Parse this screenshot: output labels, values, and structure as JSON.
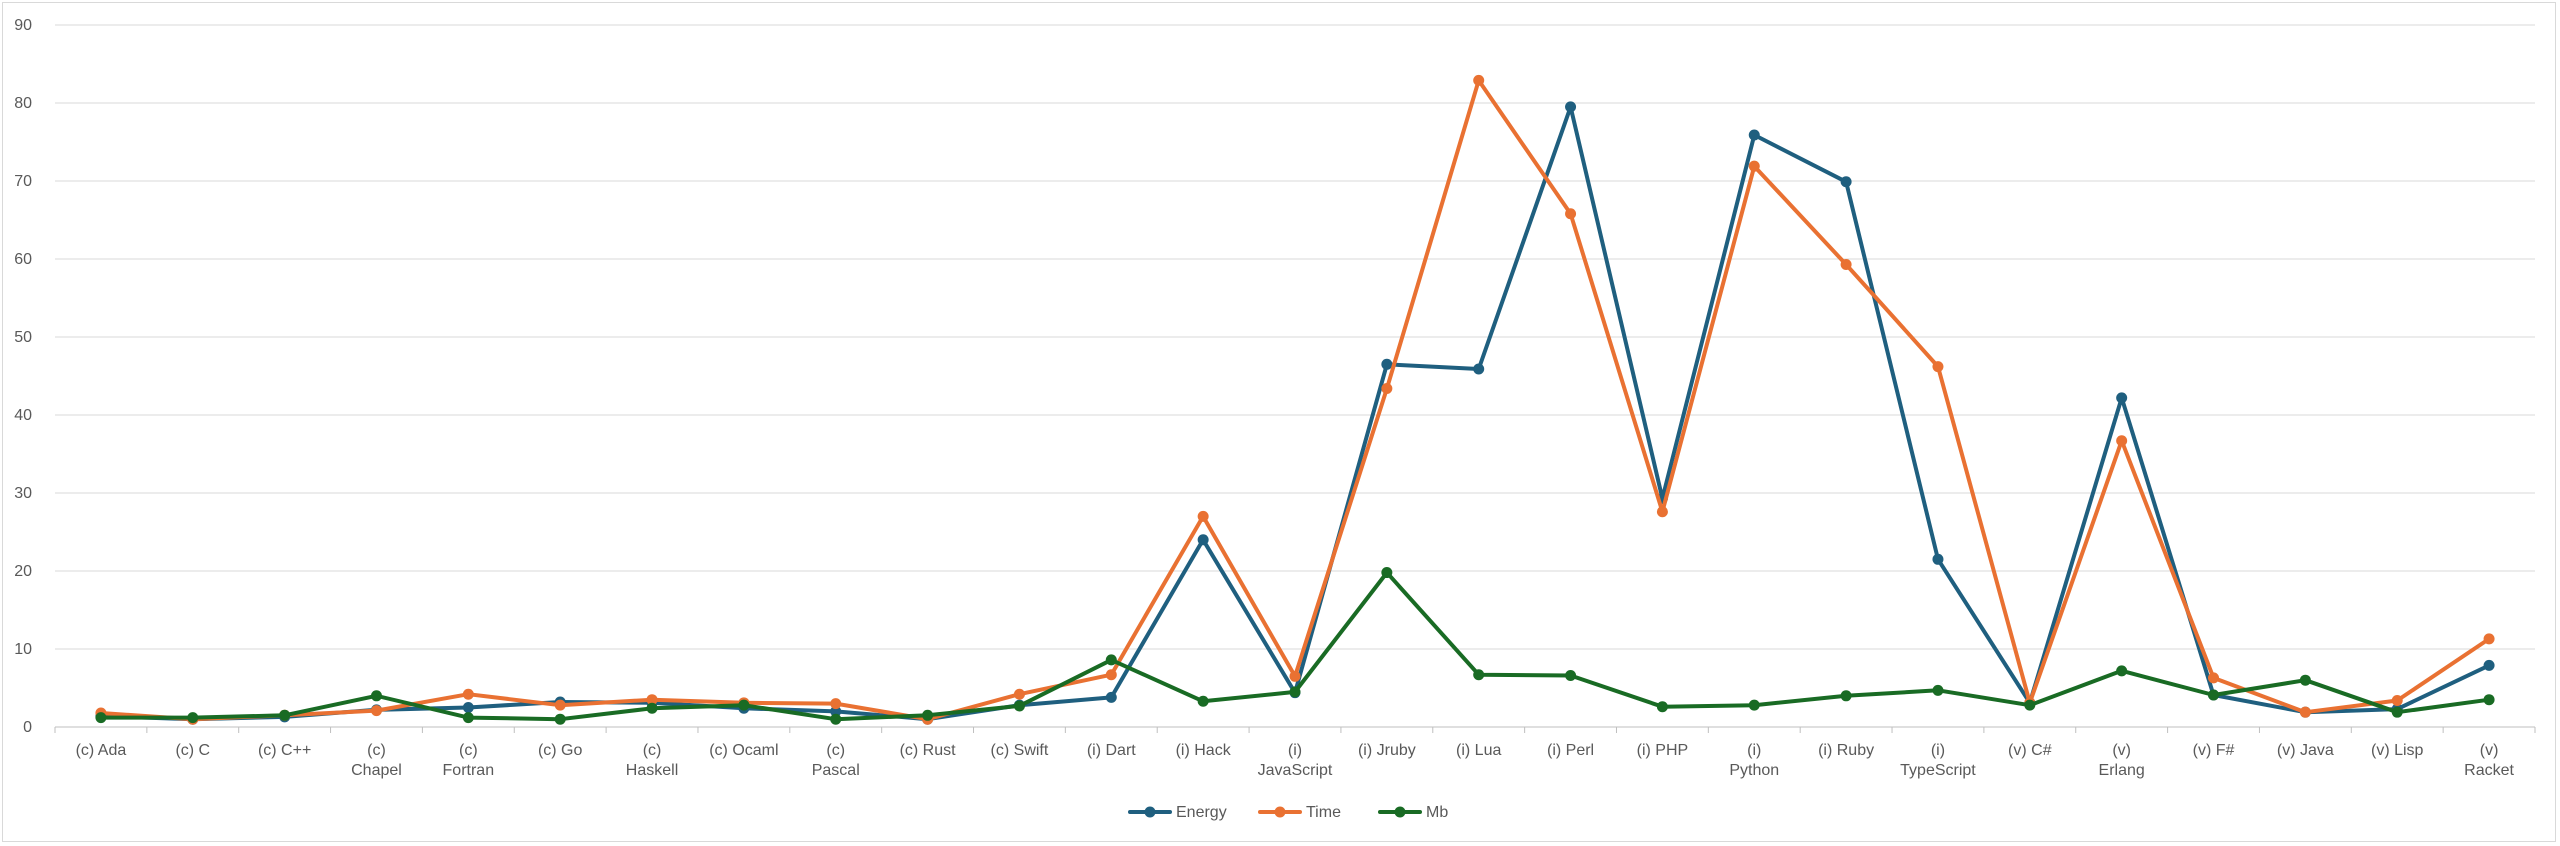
{
  "chart_data": {
    "type": "line",
    "title": "",
    "xlabel": "",
    "ylabel": "",
    "ylim": [
      0,
      90
    ],
    "y_ticks": [
      0,
      10,
      20,
      30,
      40,
      50,
      60,
      70,
      80,
      90
    ],
    "grid": true,
    "legend_position": "bottom",
    "categories": [
      "(c) Ada",
      "(c) C",
      "(c) C++",
      "(c) Chapel",
      "(c) Fortran",
      "(c) Go",
      "(c) Haskell",
      "(c) Ocaml",
      "(c) Pascal",
      "(c) Rust",
      "(c) Swift",
      "(i) Dart",
      "(i) Hack",
      "(i) JavaScript",
      "(i) Jruby",
      "(i) Lua",
      "(i) Perl",
      "(i) PHP",
      "(i) Python",
      "(i) Ruby",
      "(i) TypeScript",
      "(v) C#",
      "(v) Erlang",
      "(v) F#",
      "(v) Java",
      "(v) Lisp",
      "(v) Racket"
    ],
    "series": [
      {
        "name": "Energy",
        "color": "#1f5f7f",
        "values": [
          1.4,
          1.0,
          1.3,
          2.2,
          2.5,
          3.2,
          3.1,
          2.4,
          2.0,
          1.0,
          2.8,
          3.8,
          24.0,
          4.4,
          46.5,
          45.9,
          79.5,
          29.3,
          75.9,
          69.9,
          21.5,
          3.1,
          42.2,
          4.1,
          1.9,
          2.3,
          7.9
        ]
      },
      {
        "name": "Time",
        "color": "#e97132",
        "values": [
          1.8,
          1.0,
          1.5,
          2.1,
          4.2,
          2.8,
          3.5,
          3.1,
          3.0,
          1.0,
          4.2,
          6.7,
          27.0,
          6.5,
          43.4,
          82.9,
          65.8,
          27.6,
          71.9,
          59.3,
          46.2,
          3.1,
          36.7,
          6.3,
          1.9,
          3.4,
          11.3
        ]
      },
      {
        "name": "Mb",
        "color": "#196b24",
        "values": [
          1.2,
          1.2,
          1.5,
          4.0,
          1.2,
          1.0,
          2.4,
          2.8,
          1.0,
          1.5,
          2.7,
          8.6,
          3.3,
          4.5,
          19.8,
          6.7,
          6.6,
          2.6,
          2.8,
          4.0,
          4.7,
          2.8,
          7.2,
          4.1,
          6.0,
          1.9,
          3.5
        ]
      }
    ]
  }
}
